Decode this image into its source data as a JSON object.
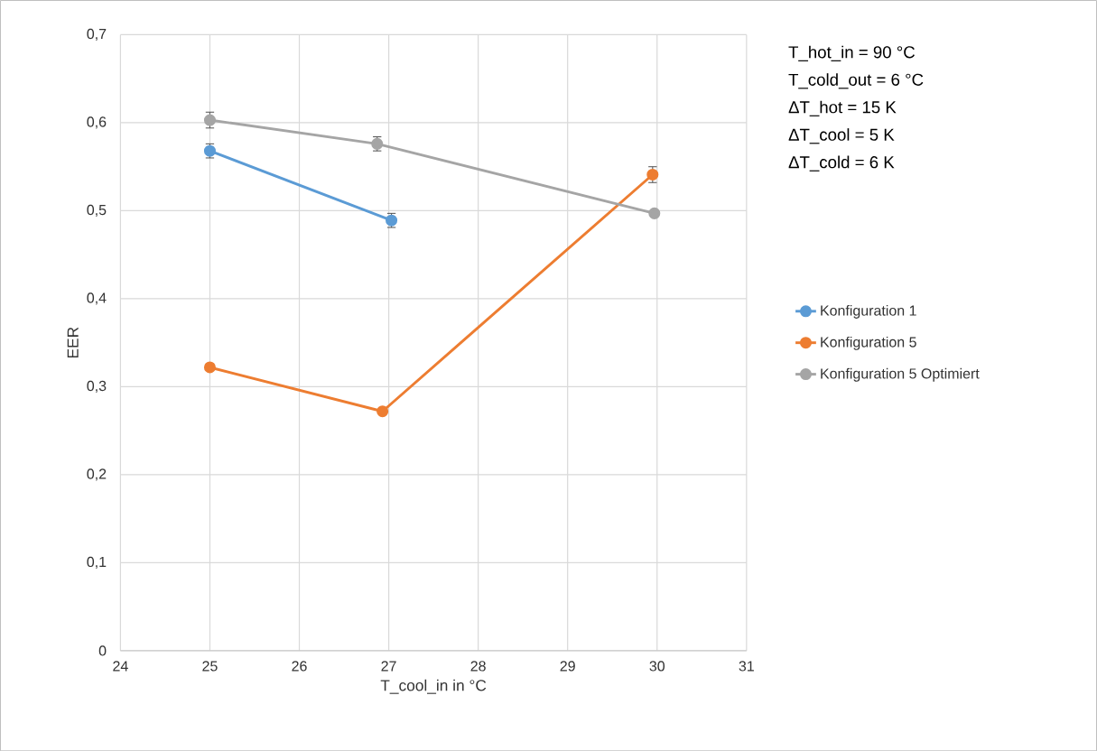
{
  "chart_data": {
    "type": "line",
    "xlabel": "T_cool_in in °C",
    "ylabel": "EER",
    "xlim": [
      24,
      31
    ],
    "xticks": [
      24,
      25,
      26,
      27,
      28,
      29,
      30,
      31
    ],
    "ylim": [
      0,
      0.7
    ],
    "yticks": [
      0,
      {
        "value": 0.1,
        "label": "0,1"
      },
      {
        "value": 0.2,
        "label": "0,2"
      },
      {
        "value": 0.3,
        "label": "0,3"
      },
      {
        "value": 0.4,
        "label": "0,4"
      },
      {
        "value": 0.5,
        "label": "0,5"
      },
      {
        "value": 0.6,
        "label": "0,6"
      },
      {
        "value": 0.7,
        "label": "0,7"
      }
    ],
    "grid": true,
    "legend": "right",
    "marker": "circle",
    "line_style": "solid",
    "annotations": [
      "T_hot_in = 90 °C",
      "T_cold_out = 6 °C",
      "ΔT_hot = 15 K",
      "ΔT_cool = 5 K",
      "ΔT_cold = 6 K"
    ],
    "series": [
      {
        "name": "Konfiguration 1",
        "color": "#5b9bd5",
        "x": [
          25,
          27.03
        ],
        "values": [
          0.568,
          0.489
        ],
        "errors": [
          0.008,
          0.008
        ]
      },
      {
        "name": "Konfiguration 5",
        "color": "#ed7d31",
        "x": [
          25,
          26.93,
          29.95
        ],
        "values": [
          0.322,
          0.272,
          0.541
        ],
        "errors": [
          null,
          null,
          0.009
        ]
      },
      {
        "name": "Konfiguration 5 Optimiert",
        "color": "#a5a5a5",
        "x": [
          25,
          26.87,
          29.97
        ],
        "values": [
          0.603,
          0.576,
          0.497
        ],
        "errors": [
          0.009,
          0.008,
          null
        ]
      }
    ]
  }
}
